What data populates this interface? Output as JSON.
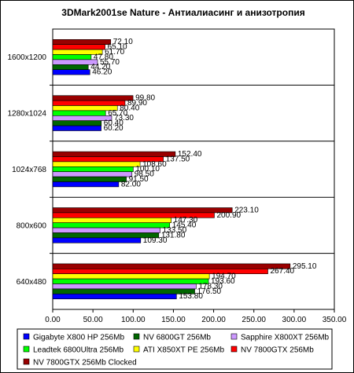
{
  "chart_data": {
    "type": "bar",
    "orientation": "horizontal",
    "title": "3DMark2001se Nature - Антиалиасинг и анизотропия",
    "xlabel": "",
    "ylabel": "",
    "categories": [
      "1600x1200",
      "1280x1024",
      "1024x768",
      "800x600",
      "640x480"
    ],
    "xlim": [
      0,
      350
    ],
    "x_ticks": [
      "0.00",
      "50.00",
      "100.00",
      "150.00",
      "200.00",
      "250.00",
      "300.00",
      "350.00"
    ],
    "grid": false,
    "legend_position": "bottom",
    "series": [
      {
        "name": "Gigabyte X800 HP 256Mb",
        "color": "#0000ff",
        "values": [
          46.2,
          60.2,
          82.0,
          109.3,
          153.8
        ],
        "labels": [
          "46.20",
          "60.20",
          "82.00",
          "109.30",
          "153.80"
        ]
      },
      {
        "name": "NV 6800GT 256Mb",
        "color": "#006600",
        "values": [
          44.2,
          60.4,
          91.5,
          131.8,
          176.5
        ],
        "labels": [
          "44.20",
          "60.40",
          "91.50",
          "131.80",
          "176.50"
        ]
      },
      {
        "name": "Sapphire X800XT 256Mb",
        "color": "#cc99ff",
        "values": [
          55.7,
          73.3,
          98.5,
          133.5,
          178.3
        ],
        "labels": [
          "55.70",
          "73.30",
          "98.50",
          "133.50",
          "178.30"
        ]
      },
      {
        "name": "Leadtek 6800Ultra 256Mb",
        "color": "#00ff00",
        "values": [
          47.8,
          65.7,
          100.1,
          145.4,
          193.6
        ],
        "labels": [
          "47.80",
          "65.70",
          "100.10",
          "145.40",
          "193.60"
        ]
      },
      {
        "name": "ATI X850XT PE 256Mb",
        "color": "#ffff00",
        "values": [
          61.7,
          80.4,
          108.6,
          147.3,
          194.7
        ],
        "labels": [
          "61.70",
          "80.40",
          "108.60",
          "147.30",
          "194.70"
        ]
      },
      {
        "name": "NV 7800GTX 256Mb",
        "color": "#ff0000",
        "values": [
          65.1,
          89.9,
          137.5,
          200.9,
          267.4
        ],
        "labels": [
          "65.10",
          "89.90",
          "137.50",
          "200.90",
          "267.40"
        ]
      },
      {
        "name": "NV 7800GTX 256Mb Clocked",
        "color": "#990000",
        "values": [
          72.1,
          99.8,
          152.4,
          223.1,
          295.1
        ],
        "labels": [
          "72.10",
          "99.80",
          "152.40",
          "223.10",
          "295.10"
        ]
      }
    ]
  }
}
